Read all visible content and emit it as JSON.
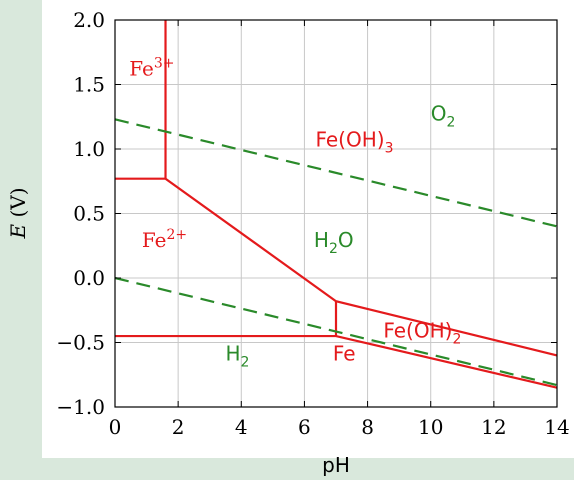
{
  "chart_data": {
    "type": "line",
    "xlabel": "pH",
    "ylabel": "E (V)",
    "xlim": [
      0,
      14
    ],
    "ylim": [
      -1.0,
      2.0
    ],
    "x_ticks": [
      0,
      2,
      4,
      6,
      8,
      10,
      12,
      14
    ],
    "y_ticks": [
      -1.0,
      -0.5,
      0.0,
      0.5,
      1.0,
      1.5,
      2.0
    ],
    "x_tick_labels": [
      "0",
      "2",
      "4",
      "6",
      "8",
      "10",
      "12",
      "14"
    ],
    "y_tick_labels": [
      "−1.0",
      "−0.5",
      "0.0",
      "0.5",
      "1.0",
      "1.5",
      "2.0"
    ],
    "grid": true,
    "boundaries": [
      {
        "points": [
          [
            0,
            0.77
          ],
          [
            1.6,
            0.77
          ],
          [
            7.0,
            -0.18
          ],
          [
            14,
            -0.6
          ]
        ],
        "color": "#e41a1c",
        "style": "solid"
      },
      {
        "points": [
          [
            1.6,
            2.0
          ],
          [
            1.6,
            0.77
          ]
        ],
        "color": "#e41a1c",
        "style": "solid"
      },
      {
        "points": [
          [
            0,
            -0.45
          ],
          [
            7.0,
            -0.45
          ],
          [
            14,
            -0.85
          ]
        ],
        "color": "#e41a1c",
        "style": "solid"
      },
      {
        "points": [
          [
            7.0,
            -0.45
          ],
          [
            7.0,
            -0.18
          ]
        ],
        "color": "#e41a1c",
        "style": "solid"
      },
      {
        "points": [
          [
            0,
            1.23
          ],
          [
            14,
            0.4
          ]
        ],
        "color": "#2a8a2a",
        "style": "dashed"
      },
      {
        "points": [
          [
            0,
            0.0
          ],
          [
            14,
            -0.83
          ]
        ],
        "color": "#2a8a2a",
        "style": "dashed"
      }
    ],
    "labels": [
      {
        "text": "Fe",
        "sup": "3+",
        "x": 0.45,
        "y": 1.57,
        "color": "#e41a1c",
        "font": "serif"
      },
      {
        "text": "O",
        "sub": "2",
        "x": 10.0,
        "y": 1.22,
        "color": "#2a8a2a",
        "font": "sans"
      },
      {
        "text": "Fe(OH)",
        "sub": "3",
        "x": 6.35,
        "y": 1.02,
        "color": "#e41a1c",
        "font": "sans"
      },
      {
        "text": "Fe",
        "sup": "2+",
        "x": 0.85,
        "y": 0.24,
        "color": "#e41a1c",
        "font": "serif"
      },
      {
        "text": "H",
        "sub": "2",
        "sup": "",
        "tail": "O",
        "x": 6.3,
        "y": 0.24,
        "color": "#2a8a2a",
        "font": "sans"
      },
      {
        "text": "Fe(OH)",
        "sub": "2",
        "x": 8.5,
        "y": -0.46,
        "color": "#e41a1c",
        "font": "sans"
      },
      {
        "text": "H",
        "sub": "2",
        "x": 3.5,
        "y": -0.64,
        "color": "#2a8a2a",
        "font": "sans"
      },
      {
        "text": "Fe",
        "x": 6.9,
        "y": -0.64,
        "color": "#e41a1c",
        "font": "sans"
      }
    ]
  }
}
